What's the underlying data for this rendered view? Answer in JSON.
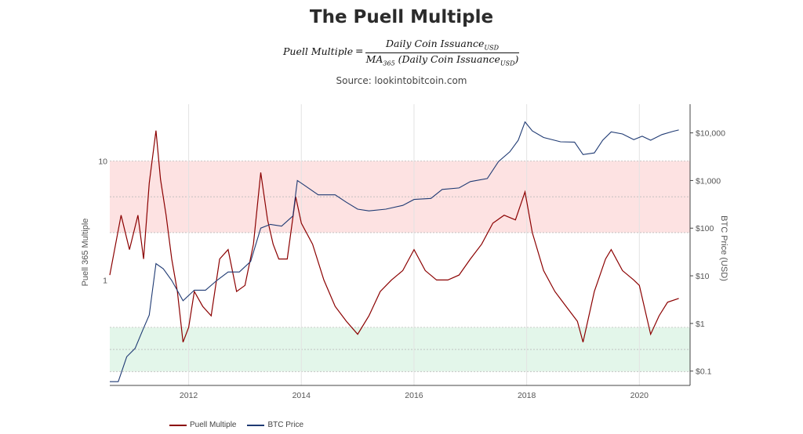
{
  "title": "The Puell Multiple",
  "formula": {
    "lhs": "Puell Multiple",
    "eq": "=",
    "numerator": "Daily Coin Issuance",
    "numerator_sub": "USD",
    "denominator_pre": "MA",
    "denominator_pre_sub": "365",
    "denominator": " (Daily Coin Issuance",
    "denominator_sub": "USD",
    "denominator_close": ")"
  },
  "source": "Source: lookintobitcoin.com",
  "colors": {
    "puell": "#8b0000",
    "btc": "#1f3a73",
    "red_band": "#fde2e2",
    "green_band": "#e3f6ea"
  },
  "chart_data": {
    "type": "line",
    "x_range": [
      2010.6,
      2020.9
    ],
    "xticks": [
      "2012",
      "2014",
      "2016",
      "2018",
      "2020"
    ],
    "xtick_values": [
      2012,
      2014,
      2016,
      2018,
      2020
    ],
    "left_axis": {
      "label": "Puell 365 Multiple",
      "scale": "log",
      "range": [
        0.13,
        30
      ],
      "ticks": [
        "10",
        "1"
      ],
      "tick_values": [
        10,
        1
      ]
    },
    "right_axis": {
      "label": "BTC Price (USD)",
      "scale": "log",
      "range": [
        0.05,
        40000
      ],
      "ticks": [
        "$10,000",
        "$1,000",
        "$100",
        "$10",
        "$1",
        "$0.1"
      ],
      "tick_values": [
        10000,
        1000,
        100,
        10,
        1,
        0.1
      ]
    },
    "bands": [
      {
        "name": "red",
        "from": 2.5,
        "to": 10
      },
      {
        "name": "green",
        "from": 0.17,
        "to": 0.4
      }
    ],
    "series": [
      {
        "name": "Puell Multiple",
        "axis": "left",
        "x": [
          2010.6,
          2010.8,
          2010.95,
          2011.1,
          2011.2,
          2011.3,
          2011.42,
          2011.5,
          2011.6,
          2011.7,
          2011.8,
          2011.9,
          2012.0,
          2012.1,
          2012.25,
          2012.4,
          2012.55,
          2012.7,
          2012.85,
          2013.0,
          2013.15,
          2013.28,
          2013.4,
          2013.5,
          2013.6,
          2013.75,
          2013.9,
          2014.0,
          2014.2,
          2014.4,
          2014.6,
          2014.8,
          2015.0,
          2015.2,
          2015.4,
          2015.6,
          2015.8,
          2016.0,
          2016.2,
          2016.4,
          2016.6,
          2016.8,
          2017.0,
          2017.2,
          2017.4,
          2017.6,
          2017.8,
          2017.97,
          2018.1,
          2018.3,
          2018.5,
          2018.7,
          2018.9,
          2019.0,
          2019.2,
          2019.4,
          2019.5,
          2019.7,
          2019.9,
          2020.0,
          2020.2,
          2020.35,
          2020.5,
          2020.7
        ],
        "y": [
          1.1,
          3.5,
          1.8,
          3.5,
          1.5,
          6.5,
          18,
          7,
          3.5,
          1.5,
          0.8,
          0.3,
          0.4,
          0.8,
          0.6,
          0.5,
          1.5,
          1.8,
          0.8,
          0.9,
          2.0,
          8.0,
          3.2,
          2.0,
          1.5,
          1.5,
          5.0,
          3.0,
          2.0,
          1.0,
          0.6,
          0.45,
          0.35,
          0.5,
          0.8,
          1.0,
          1.2,
          1.8,
          1.2,
          1.0,
          1.0,
          1.1,
          1.5,
          2.0,
          3.0,
          3.5,
          3.2,
          5.5,
          2.5,
          1.2,
          0.8,
          0.6,
          0.45,
          0.3,
          0.8,
          1.5,
          1.8,
          1.2,
          1.0,
          0.9,
          0.35,
          0.5,
          0.65,
          0.7
        ]
      },
      {
        "name": "BTC Price",
        "axis": "right",
        "x": [
          2010.6,
          2010.75,
          2010.9,
          2011.05,
          2011.2,
          2011.3,
          2011.42,
          2011.55,
          2011.7,
          2011.9,
          2012.1,
          2012.3,
          2012.5,
          2012.7,
          2012.9,
          2013.1,
          2013.28,
          2013.45,
          2013.65,
          2013.85,
          2013.93,
          2014.05,
          2014.3,
          2014.6,
          2014.8,
          2015.0,
          2015.2,
          2015.5,
          2015.8,
          2016.0,
          2016.3,
          2016.5,
          2016.8,
          2017.0,
          2017.3,
          2017.5,
          2017.7,
          2017.85,
          2017.97,
          2018.1,
          2018.3,
          2018.6,
          2018.85,
          2019.0,
          2019.2,
          2019.35,
          2019.5,
          2019.7,
          2019.9,
          2020.05,
          2020.2,
          2020.4,
          2020.6,
          2020.7
        ],
        "y": [
          0.06,
          0.06,
          0.2,
          0.3,
          0.8,
          1.5,
          18,
          14,
          8,
          3,
          5,
          5,
          8,
          12,
          12,
          20,
          100,
          120,
          110,
          180,
          1000,
          800,
          500,
          500,
          350,
          250,
          230,
          250,
          300,
          400,
          420,
          650,
          700,
          950,
          1100,
          2500,
          4000,
          7000,
          17000,
          11000,
          8000,
          6500,
          6400,
          3500,
          3800,
          7000,
          10500,
          9500,
          7200,
          8500,
          7000,
          9200,
          10800,
          11500
        ]
      }
    ]
  },
  "legend": [
    "Puell Multiple",
    "BTC Price"
  ]
}
